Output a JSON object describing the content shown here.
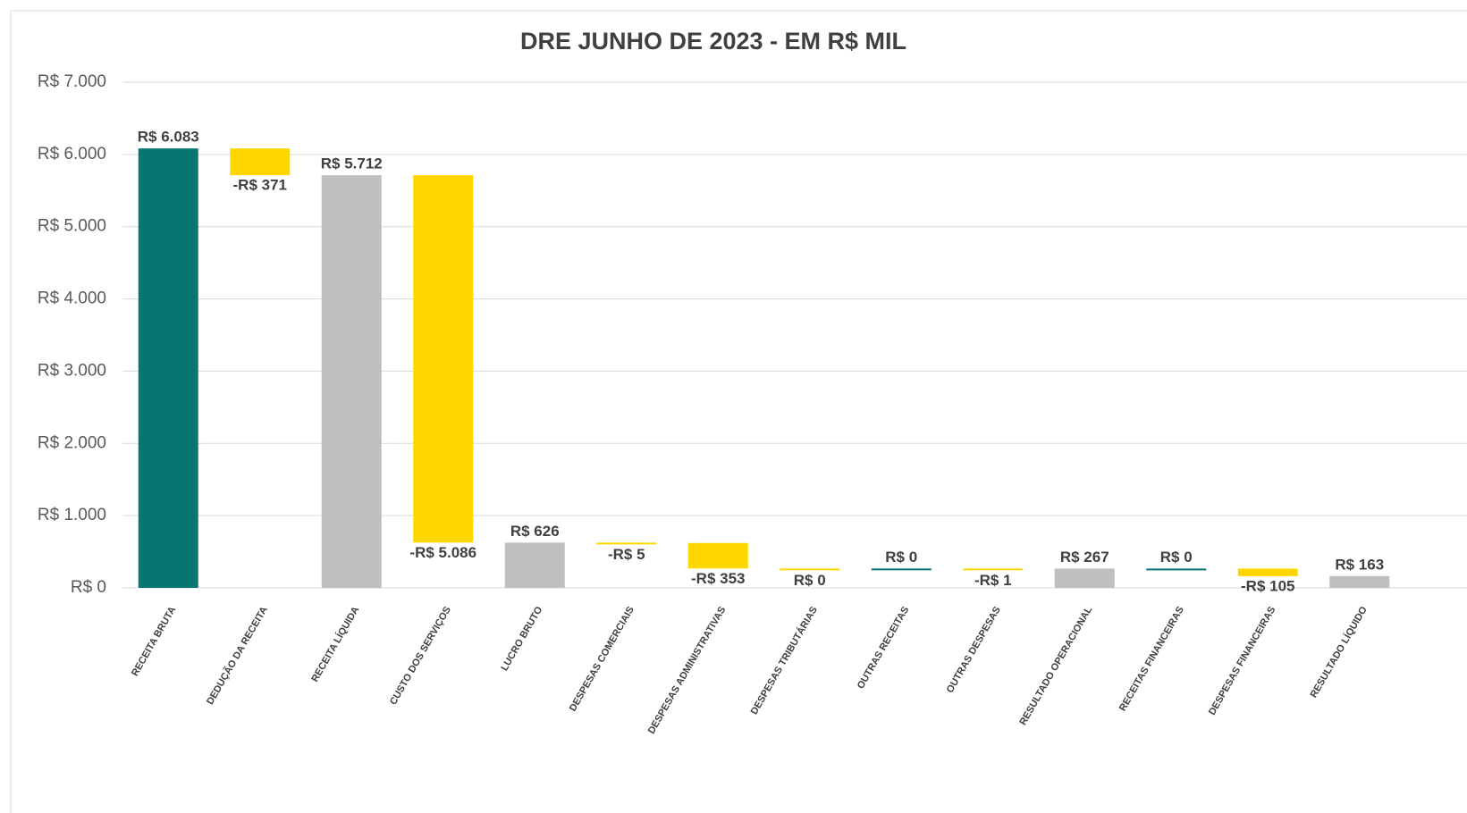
{
  "chart_data": {
    "type": "waterfall",
    "title": "DRE JUNHO DE 2023 - EM R$ MIL",
    "categories": [
      "RECEITA BRUTA",
      "DEDUÇÃO DA RECEITA",
      "RECEITA LÍQUIDA",
      "CUSTO DOS SERVIÇOS",
      "LUCRO BRUTO",
      "DESPESAS COMERCIAIS",
      "DESPESAS ADMINISTRATIVAS",
      "DESPESAS TRIBUTÁRIAS",
      "OUTRAS RECEITAS",
      "OUTRAS DESPESAS",
      "RESULTADO OPERACIONAL",
      "RECEITAS FINANCEIRAS",
      "DESPESAS FINANCEIRAS",
      "RESULTADO LÍQUIDO"
    ],
    "values": [
      6083,
      -371,
      5712,
      -5086,
      626,
      -5,
      -353,
      0,
      0,
      -1,
      267,
      0,
      -105,
      163
    ],
    "value_labels": [
      "R$ 6.083",
      "-R$ 371",
      "R$ 5.712",
      "-R$ 5.086",
      "R$ 626",
      "-R$ 5",
      "-R$ 353",
      "R$ 0",
      "R$ 0",
      "-R$ 1",
      "R$ 267",
      "R$ 0",
      "-R$ 105",
      "R$ 163"
    ],
    "colors": [
      "#077571",
      "#ffd700",
      "#bfbfbf",
      "#ffd700",
      "#bfbfbf",
      "#ffd700",
      "#ffd700",
      "#ffd700",
      "#077571",
      "#ffd700",
      "#bfbfbf",
      "#077571",
      "#ffd700",
      "#bfbfbf"
    ],
    "total_indices": [
      0,
      2,
      4,
      10,
      13
    ],
    "ylim": [
      0,
      7000
    ],
    "yticks": [
      {
        "value": 0,
        "label": "R$ 0"
      },
      {
        "value": 1000,
        "label": "R$ 1.000"
      },
      {
        "value": 2000,
        "label": "R$ 2.000"
      },
      {
        "value": 3000,
        "label": "R$ 3.000"
      },
      {
        "value": 4000,
        "label": "R$ 4.000"
      },
      {
        "value": 5000,
        "label": "R$ 5.000"
      },
      {
        "value": 6000,
        "label": "R$ 6.000"
      },
      {
        "value": 7000,
        "label": "R$ 7.000"
      }
    ],
    "grid": true
  }
}
